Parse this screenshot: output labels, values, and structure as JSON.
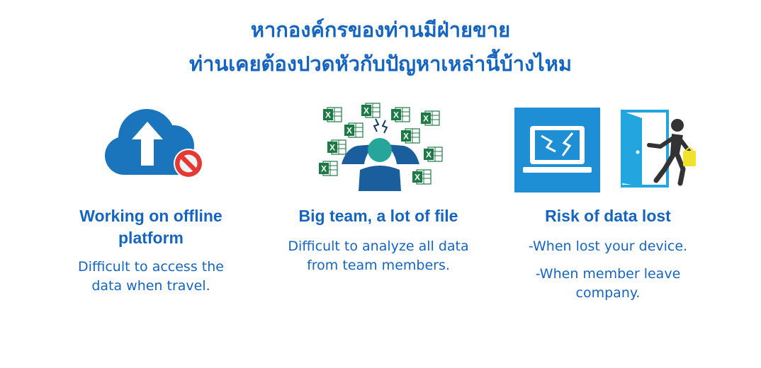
{
  "header": {
    "title_line1": "หากองค์กรของท่านมีฝ่ายขาย",
    "title_line2": "ท่านเคยต้องปวดหัวกับปัญหาเหล่านี้บ้างไหม"
  },
  "columns": [
    {
      "heading": "Working on offline platform",
      "heading_line1": "Working on offline",
      "heading_line2": "platform",
      "body_line1": "Difficult to access the",
      "body_line2": "data when travel.",
      "icon": "cloud-upload-blocked-icon"
    },
    {
      "heading": "Big team, a lot of file",
      "body_line1": "Difficult to analyze all data",
      "body_line2": "from team members.",
      "icon": "stressed-person-excel-files-icon"
    },
    {
      "heading": "Risk of data lost",
      "item1": "-When lost your device.",
      "item2_line1": "-When member leave",
      "item2_line2": "company.",
      "icons": [
        "broken-laptop-icon",
        "person-leaving-door-icon"
      ]
    }
  ],
  "colors": {
    "accent": "#1565c0",
    "cloud": "#1b75bc",
    "tile": "#1e8fd5",
    "excel_green": "#1d7a45",
    "block_red": "#e53935"
  }
}
